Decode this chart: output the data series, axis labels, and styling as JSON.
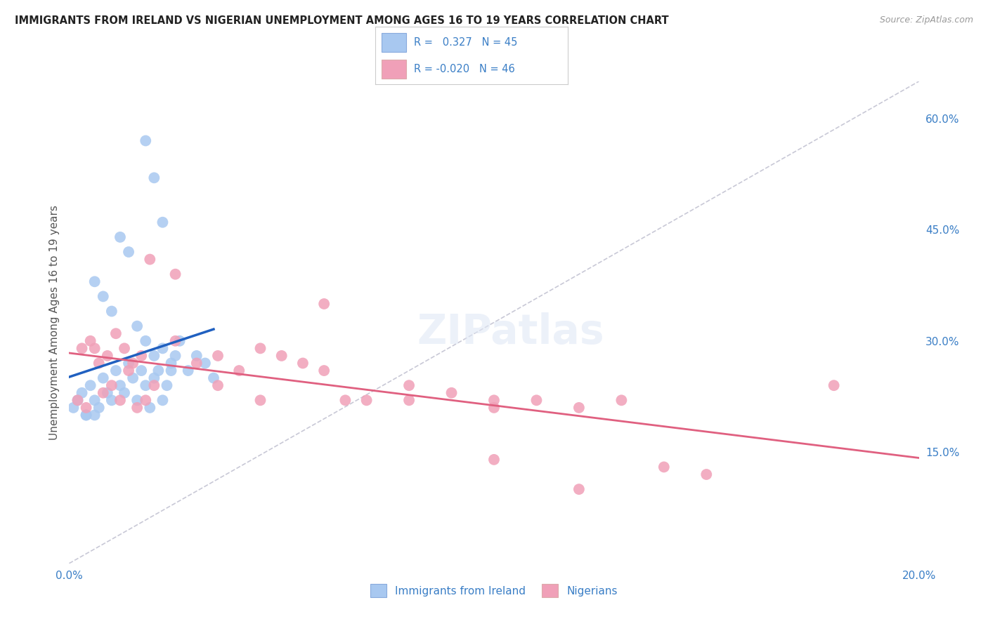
{
  "title": "IMMIGRANTS FROM IRELAND VS NIGERIAN UNEMPLOYMENT AMONG AGES 16 TO 19 YEARS CORRELATION CHART",
  "source": "Source: ZipAtlas.com",
  "ylabel": "Unemployment Among Ages 16 to 19 years",
  "legend_label_1": "Immigrants from Ireland",
  "legend_label_2": "Nigerians",
  "R1": 0.327,
  "N1": 45,
  "R2": -0.02,
  "N2": 46,
  "color_blue": "#A8C8F0",
  "color_pink": "#F0A0B8",
  "color_blue_line": "#2060C0",
  "color_pink_line": "#E06080",
  "color_diag": "#BBBBCC",
  "background": "#FFFFFF",
  "xlim": [
    0,
    0.2
  ],
  "ylim": [
    0,
    0.65
  ],
  "blue_x": [
    0.001,
    0.002,
    0.003,
    0.004,
    0.005,
    0.006,
    0.007,
    0.008,
    0.009,
    0.01,
    0.011,
    0.012,
    0.013,
    0.014,
    0.015,
    0.016,
    0.017,
    0.018,
    0.019,
    0.02,
    0.021,
    0.022,
    0.023,
    0.024,
    0.025,
    0.006,
    0.008,
    0.01,
    0.012,
    0.014,
    0.016,
    0.018,
    0.02,
    0.022,
    0.024,
    0.026,
    0.028,
    0.03,
    0.032,
    0.034,
    0.018,
    0.02,
    0.022,
    0.004,
    0.006
  ],
  "blue_y": [
    0.21,
    0.22,
    0.23,
    0.2,
    0.24,
    0.22,
    0.21,
    0.25,
    0.23,
    0.22,
    0.26,
    0.24,
    0.23,
    0.27,
    0.25,
    0.22,
    0.26,
    0.24,
    0.21,
    0.25,
    0.26,
    0.22,
    0.24,
    0.26,
    0.28,
    0.38,
    0.36,
    0.34,
    0.44,
    0.42,
    0.32,
    0.3,
    0.28,
    0.29,
    0.27,
    0.3,
    0.26,
    0.28,
    0.27,
    0.25,
    0.57,
    0.52,
    0.46,
    0.2,
    0.2
  ],
  "pink_x": [
    0.002,
    0.004,
    0.006,
    0.008,
    0.01,
    0.012,
    0.014,
    0.016,
    0.018,
    0.02,
    0.025,
    0.03,
    0.035,
    0.04,
    0.045,
    0.05,
    0.055,
    0.06,
    0.065,
    0.07,
    0.08,
    0.09,
    0.1,
    0.11,
    0.12,
    0.13,
    0.14,
    0.15,
    0.003,
    0.005,
    0.007,
    0.009,
    0.011,
    0.013,
    0.015,
    0.017,
    0.019,
    0.025,
    0.035,
    0.045,
    0.06,
    0.08,
    0.1,
    0.12,
    0.18,
    0.1
  ],
  "pink_y": [
    0.22,
    0.21,
    0.29,
    0.23,
    0.24,
    0.22,
    0.26,
    0.21,
    0.22,
    0.24,
    0.3,
    0.27,
    0.28,
    0.26,
    0.29,
    0.28,
    0.27,
    0.26,
    0.22,
    0.22,
    0.24,
    0.23,
    0.22,
    0.22,
    0.21,
    0.22,
    0.13,
    0.12,
    0.29,
    0.3,
    0.27,
    0.28,
    0.31,
    0.29,
    0.27,
    0.28,
    0.41,
    0.39,
    0.24,
    0.22,
    0.35,
    0.22,
    0.14,
    0.1,
    0.24,
    0.21
  ],
  "xticks": [
    0.0,
    0.05,
    0.1,
    0.15,
    0.2
  ],
  "xticklabels": [
    "0.0%",
    "",
    "",
    "",
    "20.0%"
  ],
  "yticks_right": [
    0.15,
    0.3,
    0.45,
    0.6
  ],
  "yticklabels_right": [
    "15.0%",
    "30.0%",
    "45.0%",
    "60.0%"
  ]
}
